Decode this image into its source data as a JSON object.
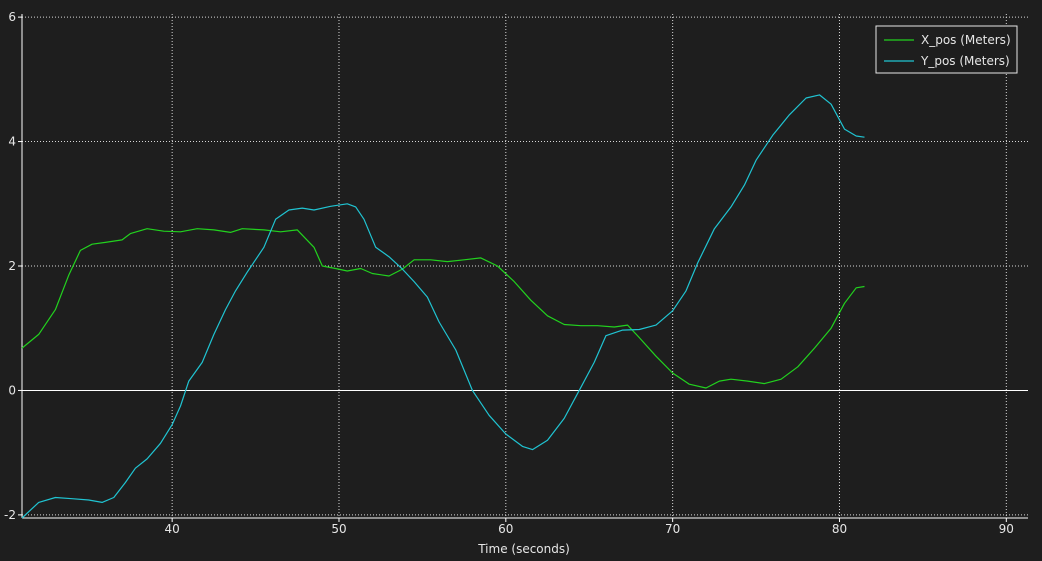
{
  "chart_data": {
    "type": "line",
    "xlabel": "Time (seconds)",
    "ylabel": "",
    "xlim": [
      31.0,
      91.3
    ],
    "ylim": [
      -2.05,
      6.05
    ],
    "xticks": [
      40,
      50,
      60,
      70,
      80,
      90
    ],
    "yticks": [
      -2,
      0,
      2,
      4,
      6
    ],
    "grid": true,
    "legend_position": "top-right",
    "colors": {
      "background": "#1e1e1e",
      "grid": "#d8d8d8",
      "axis": "#ffffff",
      "zero_line": "#ffffff"
    },
    "series": [
      {
        "name": "X_pos (Meters)",
        "color": "#22d21e",
        "points": [
          [
            31.0,
            0.68
          ],
          [
            32.0,
            0.9
          ],
          [
            33.0,
            1.3
          ],
          [
            33.8,
            1.85
          ],
          [
            34.5,
            2.25
          ],
          [
            35.2,
            2.35
          ],
          [
            36.0,
            2.38
          ],
          [
            37.0,
            2.42
          ],
          [
            37.5,
            2.52
          ],
          [
            38.5,
            2.6
          ],
          [
            39.5,
            2.56
          ],
          [
            40.5,
            2.55
          ],
          [
            41.5,
            2.6
          ],
          [
            42.5,
            2.58
          ],
          [
            43.5,
            2.54
          ],
          [
            44.2,
            2.6
          ],
          [
            45.5,
            2.58
          ],
          [
            46.5,
            2.55
          ],
          [
            47.5,
            2.58
          ],
          [
            48.5,
            2.3
          ],
          [
            49.0,
            2.0
          ],
          [
            49.8,
            1.96
          ],
          [
            50.5,
            1.92
          ],
          [
            51.3,
            1.96
          ],
          [
            52.0,
            1.88
          ],
          [
            53.0,
            1.84
          ],
          [
            53.8,
            1.95
          ],
          [
            54.5,
            2.1
          ],
          [
            55.5,
            2.1
          ],
          [
            56.5,
            2.07
          ],
          [
            57.5,
            2.1
          ],
          [
            58.5,
            2.13
          ],
          [
            59.5,
            2.0
          ],
          [
            60.5,
            1.75
          ],
          [
            61.5,
            1.45
          ],
          [
            62.5,
            1.2
          ],
          [
            63.5,
            1.06
          ],
          [
            64.5,
            1.04
          ],
          [
            65.5,
            1.04
          ],
          [
            66.5,
            1.02
          ],
          [
            67.3,
            1.05
          ],
          [
            68.0,
            0.85
          ],
          [
            69.0,
            0.55
          ],
          [
            70.0,
            0.28
          ],
          [
            71.0,
            0.1
          ],
          [
            72.0,
            0.04
          ],
          [
            72.8,
            0.15
          ],
          [
            73.5,
            0.18
          ],
          [
            74.5,
            0.15
          ],
          [
            75.5,
            0.11
          ],
          [
            76.5,
            0.18
          ],
          [
            77.5,
            0.38
          ],
          [
            78.5,
            0.68
          ],
          [
            79.5,
            1.0
          ],
          [
            80.3,
            1.4
          ],
          [
            81.0,
            1.65
          ],
          [
            81.5,
            1.67
          ]
        ]
      },
      {
        "name": "Y_pos (Meters)",
        "color": "#20c4d2",
        "points": [
          [
            31.0,
            -2.05
          ],
          [
            32.0,
            -1.8
          ],
          [
            33.0,
            -1.72
          ],
          [
            34.0,
            -1.74
          ],
          [
            35.0,
            -1.76
          ],
          [
            35.8,
            -1.8
          ],
          [
            36.5,
            -1.72
          ],
          [
            37.2,
            -1.48
          ],
          [
            37.8,
            -1.25
          ],
          [
            38.5,
            -1.1
          ],
          [
            39.3,
            -0.85
          ],
          [
            40.0,
            -0.55
          ],
          [
            40.5,
            -0.25
          ],
          [
            41.0,
            0.15
          ],
          [
            41.8,
            0.45
          ],
          [
            42.5,
            0.9
          ],
          [
            43.2,
            1.3
          ],
          [
            43.8,
            1.6
          ],
          [
            44.5,
            1.9
          ],
          [
            45.5,
            2.3
          ],
          [
            46.2,
            2.75
          ],
          [
            47.0,
            2.9
          ],
          [
            47.8,
            2.93
          ],
          [
            48.5,
            2.9
          ],
          [
            49.5,
            2.96
          ],
          [
            50.5,
            3.0
          ],
          [
            51.0,
            2.95
          ],
          [
            51.5,
            2.75
          ],
          [
            52.2,
            2.3
          ],
          [
            53.0,
            2.15
          ],
          [
            53.8,
            1.95
          ],
          [
            54.5,
            1.75
          ],
          [
            55.3,
            1.5
          ],
          [
            56.0,
            1.1
          ],
          [
            57.0,
            0.65
          ],
          [
            58.0,
            0.0
          ],
          [
            59.0,
            -0.4
          ],
          [
            60.0,
            -0.7
          ],
          [
            61.0,
            -0.9
          ],
          [
            61.6,
            -0.95
          ],
          [
            62.5,
            -0.8
          ],
          [
            63.5,
            -0.45
          ],
          [
            64.5,
            0.05
          ],
          [
            65.3,
            0.45
          ],
          [
            66.0,
            0.88
          ],
          [
            67.0,
            0.97
          ],
          [
            68.0,
            0.98
          ],
          [
            69.0,
            1.05
          ],
          [
            70.0,
            1.28
          ],
          [
            70.8,
            1.6
          ],
          [
            71.5,
            2.05
          ],
          [
            72.5,
            2.6
          ],
          [
            73.5,
            2.95
          ],
          [
            74.3,
            3.3
          ],
          [
            75.0,
            3.7
          ],
          [
            76.0,
            4.1
          ],
          [
            77.0,
            4.43
          ],
          [
            78.0,
            4.7
          ],
          [
            78.8,
            4.75
          ],
          [
            79.5,
            4.6
          ],
          [
            80.3,
            4.2
          ],
          [
            81.0,
            4.09
          ],
          [
            81.5,
            4.07
          ]
        ]
      }
    ]
  }
}
